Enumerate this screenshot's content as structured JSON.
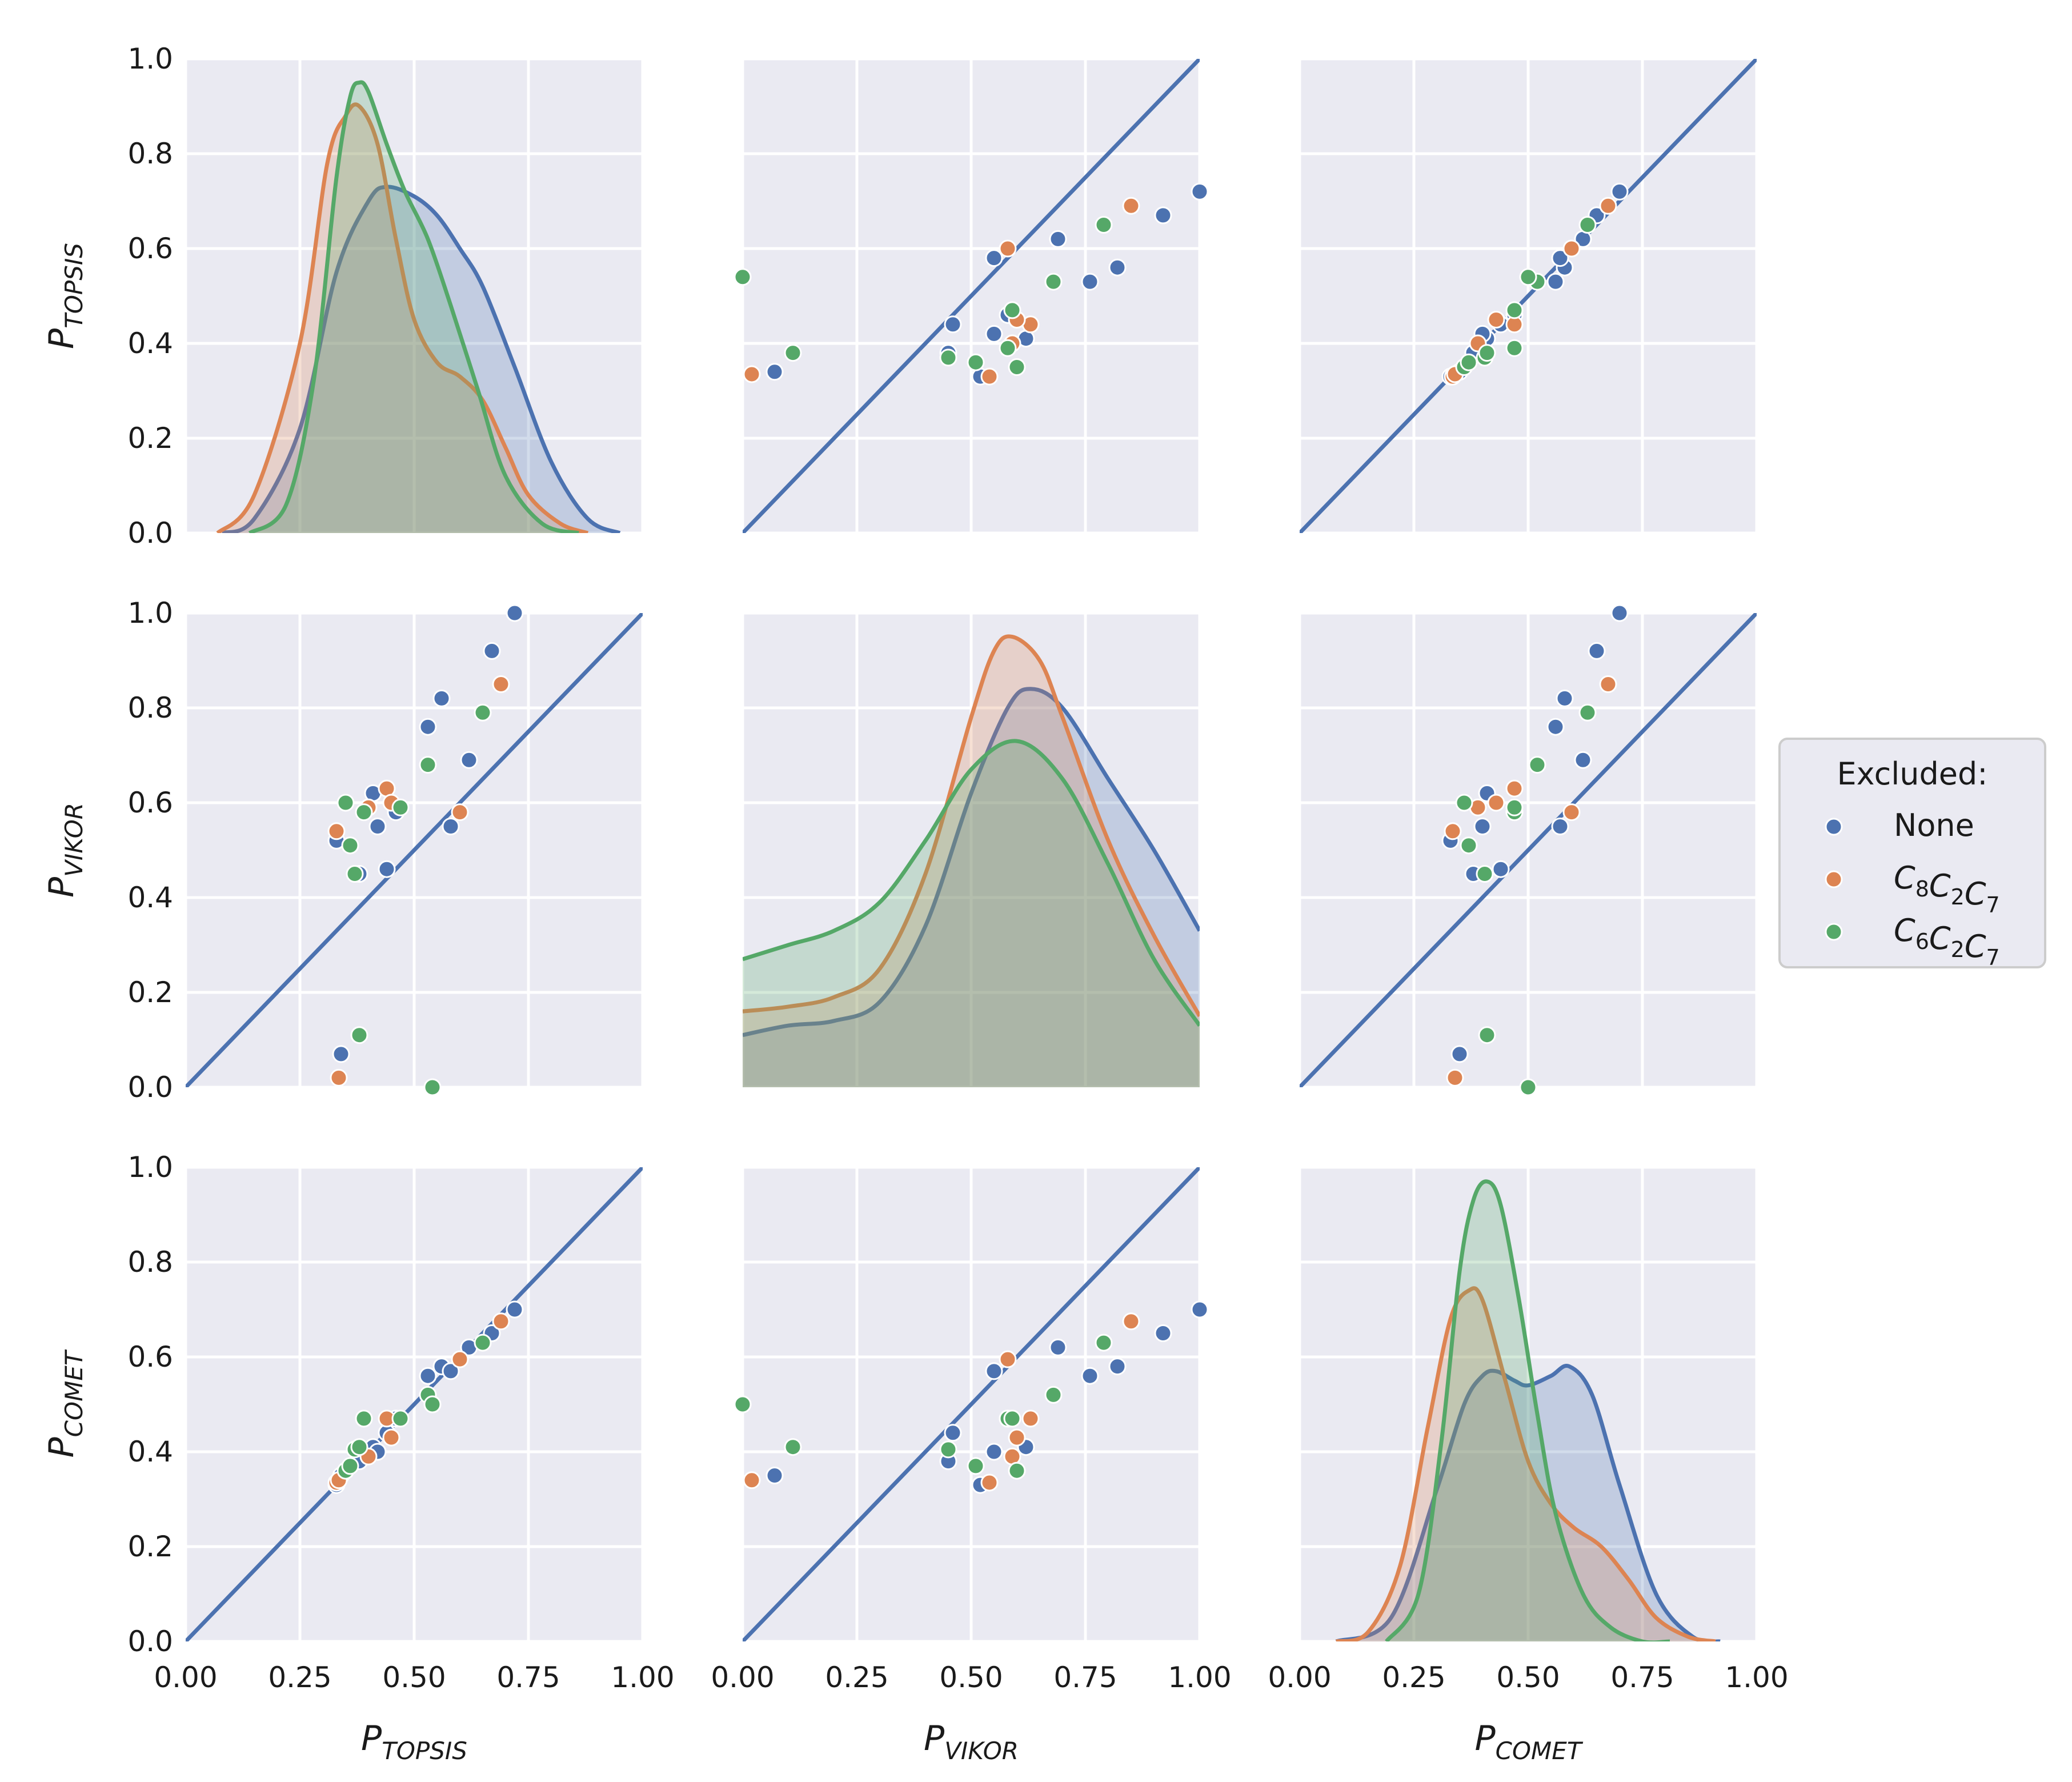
{
  "chart_data": {
    "type": "scatter-matrix",
    "variables": [
      {
        "key": "TOPSIS",
        "label_main": "P",
        "label_sub": "TOPSIS"
      },
      {
        "key": "VIKOR",
        "label_main": "P",
        "label_sub": "VIKOR"
      },
      {
        "key": "COMET",
        "label_main": "P",
        "label_sub": "COMET"
      }
    ],
    "xlim": [
      0,
      1
    ],
    "ylim": [
      0,
      1
    ],
    "ticks": [
      0.0,
      0.25,
      0.5,
      0.75,
      1.0
    ],
    "x_tick_labels": [
      "0.00",
      "0.25",
      "0.50",
      "0.75",
      "1.00"
    ],
    "y_ticks": [
      0.0,
      0.2,
      0.4,
      0.6,
      0.8,
      1.0
    ],
    "y_tick_labels": [
      "0.0",
      "0.2",
      "0.4",
      "0.6",
      "0.8",
      "1.0"
    ],
    "diagonal_plot": "kde",
    "off_diagonal_plot": "scatter with y=x reference line",
    "reference_line_color": "#4c72b0",
    "legend": {
      "title": "Excluded:",
      "entries": [
        {
          "label": "None",
          "main": "None",
          "subs": [],
          "color": "#4c72b0"
        },
        {
          "label": "C8C2C7",
          "main": "C",
          "subs": [
            "8",
            "2",
            "7"
          ],
          "color": "#dd8452"
        },
        {
          "label": "C6C2C7",
          "main": "C",
          "subs": [
            "6",
            "2",
            "7"
          ],
          "color": "#55a868"
        }
      ]
    },
    "series": [
      {
        "name": "None",
        "color": "#4c72b0",
        "TOPSIS": [
          0.33,
          0.34,
          0.38,
          0.41,
          0.42,
          0.44,
          0.46,
          0.53,
          0.56,
          0.58,
          0.62,
          0.67,
          0.72
        ],
        "VIKOR": [
          0.52,
          0.07,
          0.45,
          0.62,
          0.55,
          0.46,
          0.58,
          0.76,
          0.82,
          0.55,
          0.69,
          0.92,
          1.0
        ],
        "COMET": [
          0.33,
          0.35,
          0.38,
          0.41,
          0.4,
          0.44,
          0.47,
          0.56,
          0.58,
          0.57,
          0.62,
          0.65,
          0.7
        ]
      },
      {
        "name": "C8C2C7",
        "color": "#dd8452",
        "TOPSIS": [
          0.33,
          0.335,
          0.4,
          0.44,
          0.45,
          0.6,
          0.69
        ],
        "VIKOR": [
          0.54,
          0.02,
          0.59,
          0.63,
          0.6,
          0.58,
          0.85
        ],
        "COMET": [
          0.335,
          0.34,
          0.39,
          0.47,
          0.43,
          0.595,
          0.675
        ]
      },
      {
        "name": "C6C2C7",
        "color": "#55a868",
        "TOPSIS": [
          0.35,
          0.36,
          0.37,
          0.38,
          0.39,
          0.47,
          0.53,
          0.54,
          0.65
        ],
        "VIKOR": [
          0.6,
          0.51,
          0.45,
          0.11,
          0.58,
          0.59,
          0.68,
          0.0,
          0.79
        ],
        "COMET": [
          0.36,
          0.37,
          0.405,
          0.41,
          0.47,
          0.47,
          0.52,
          0.5,
          0.63
        ]
      }
    ],
    "kde_curves": {
      "TOPSIS": [
        {
          "name": "None",
          "x": [
            0.08,
            0.15,
            0.25,
            0.33,
            0.4,
            0.44,
            0.5,
            0.55,
            0.6,
            0.65,
            0.72,
            0.8,
            0.88,
            0.95
          ],
          "y": [
            0.0,
            0.03,
            0.22,
            0.55,
            0.7,
            0.73,
            0.71,
            0.67,
            0.6,
            0.52,
            0.35,
            0.15,
            0.03,
            0.0
          ]
        },
        {
          "name": "C8C2C7",
          "x": [
            0.07,
            0.15,
            0.25,
            0.31,
            0.35,
            0.38,
            0.42,
            0.46,
            0.5,
            0.55,
            0.6,
            0.65,
            0.7,
            0.75,
            0.82,
            0.88
          ],
          "y": [
            0.0,
            0.08,
            0.4,
            0.78,
            0.88,
            0.9,
            0.82,
            0.62,
            0.45,
            0.36,
            0.33,
            0.28,
            0.18,
            0.08,
            0.02,
            0.0
          ]
        },
        {
          "name": "C6C2C7",
          "x": [
            0.14,
            0.22,
            0.28,
            0.33,
            0.36,
            0.38,
            0.4,
            0.44,
            0.48,
            0.53,
            0.58,
            0.64,
            0.7,
            0.78,
            0.86
          ],
          "y": [
            0.0,
            0.06,
            0.32,
            0.75,
            0.92,
            0.95,
            0.93,
            0.82,
            0.72,
            0.62,
            0.48,
            0.3,
            0.12,
            0.02,
            0.0
          ]
        }
      ],
      "VIKOR": [
        {
          "name": "None",
          "x": [
            0.0,
            0.1,
            0.2,
            0.3,
            0.4,
            0.5,
            0.58,
            0.63,
            0.7,
            0.8,
            0.9,
            1.0
          ],
          "y": [
            0.11,
            0.13,
            0.14,
            0.18,
            0.34,
            0.62,
            0.8,
            0.84,
            0.8,
            0.65,
            0.5,
            0.33
          ]
        },
        {
          "name": "C8C2C7",
          "x": [
            0.0,
            0.1,
            0.2,
            0.3,
            0.4,
            0.5,
            0.55,
            0.59,
            0.65,
            0.7,
            0.8,
            0.9,
            1.0
          ],
          "y": [
            0.16,
            0.17,
            0.19,
            0.25,
            0.45,
            0.78,
            0.92,
            0.95,
            0.9,
            0.78,
            0.52,
            0.32,
            0.15
          ]
        },
        {
          "name": "C6C2C7",
          "x": [
            0.0,
            0.1,
            0.2,
            0.3,
            0.4,
            0.5,
            0.6,
            0.7,
            0.8,
            0.9,
            1.0
          ],
          "y": [
            0.27,
            0.3,
            0.33,
            0.39,
            0.52,
            0.67,
            0.73,
            0.65,
            0.47,
            0.27,
            0.13
          ]
        }
      ],
      "COMET": [
        {
          "name": "None",
          "x": [
            0.08,
            0.2,
            0.3,
            0.36,
            0.4,
            0.43,
            0.47,
            0.5,
            0.55,
            0.59,
            0.64,
            0.7,
            0.78,
            0.86,
            0.92
          ],
          "y": [
            0.0,
            0.05,
            0.32,
            0.5,
            0.56,
            0.57,
            0.55,
            0.54,
            0.56,
            0.58,
            0.52,
            0.33,
            0.1,
            0.01,
            0.0
          ]
        },
        {
          "name": "C8C2C7",
          "x": [
            0.08,
            0.15,
            0.22,
            0.28,
            0.33,
            0.37,
            0.4,
            0.45,
            0.5,
            0.55,
            0.6,
            0.66,
            0.72,
            0.78,
            0.85,
            0.91
          ],
          "y": [
            0.0,
            0.02,
            0.16,
            0.45,
            0.68,
            0.74,
            0.72,
            0.55,
            0.38,
            0.29,
            0.24,
            0.2,
            0.13,
            0.05,
            0.01,
            0.0
          ]
        },
        {
          "name": "C6C2C7",
          "x": [
            0.19,
            0.26,
            0.31,
            0.35,
            0.38,
            0.41,
            0.44,
            0.48,
            0.52,
            0.56,
            0.62,
            0.68,
            0.75,
            0.81
          ],
          "y": [
            0.0,
            0.1,
            0.42,
            0.78,
            0.93,
            0.97,
            0.92,
            0.72,
            0.48,
            0.27,
            0.1,
            0.03,
            0.0,
            0.0
          ]
        }
      ]
    }
  }
}
